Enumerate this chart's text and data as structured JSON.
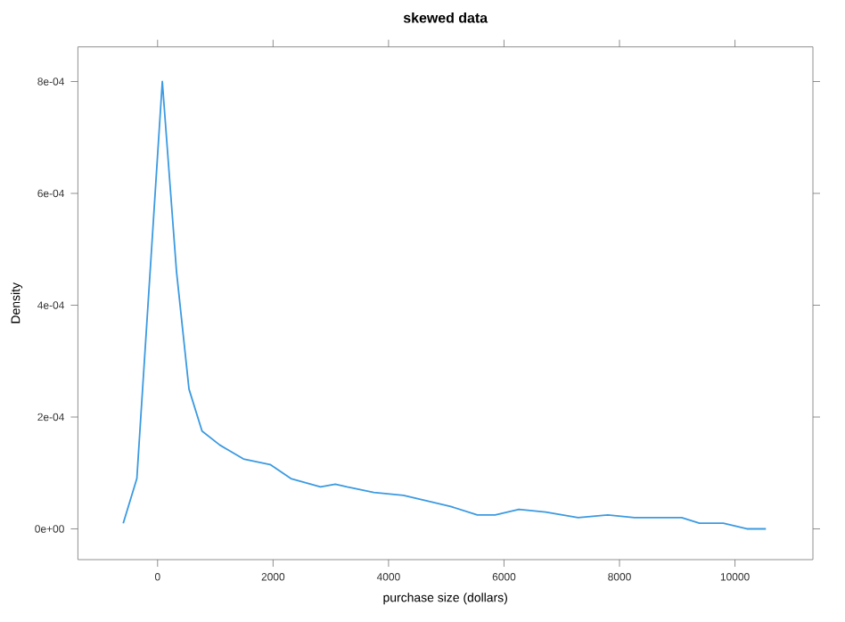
{
  "chart_data": {
    "type": "line",
    "title": "skewed data",
    "xlabel": "purchase size (dollars)",
    "ylabel": "Density",
    "x": [
      -595,
      -359,
      82,
      328,
      544,
      770,
      1077,
      1488,
      1950,
      2309,
      2822,
      3078,
      3283,
      3745,
      4258,
      4668,
      5077,
      5539,
      5847,
      6258,
      6720,
      7284,
      7797,
      8259,
      9077,
      9385,
      9797,
      10206,
      10536
    ],
    "series": [
      {
        "color": "#3b9ae1",
        "values": [
          1e-05,
          9e-05,
          0.0008,
          0.00046,
          0.00025,
          0.000175,
          0.00015,
          0.000125,
          0.000115,
          9e-05,
          7.5e-05,
          8e-05,
          7.5e-05,
          6.5e-05,
          6e-05,
          5e-05,
          4e-05,
          2.5e-05,
          2.5e-05,
          3.5e-05,
          3e-05,
          2e-05,
          2.5e-05,
          2e-05,
          2e-05,
          1e-05,
          1e-05,
          0.0,
          0.0
        ]
      }
    ],
    "xlim": [
      -1380,
      11350
    ],
    "ylim": [
      -5.5e-05,
      0.000862
    ],
    "xticks": [
      0,
      2000,
      4000,
      6000,
      8000,
      10000
    ],
    "yticks": [
      {
        "value": 0,
        "label": "0e+00"
      },
      {
        "value": 0.0002,
        "label": "2e-04"
      },
      {
        "value": 0.0004,
        "label": "4e-04"
      },
      {
        "value": 0.0006,
        "label": "6e-04"
      },
      {
        "value": 0.0008,
        "label": "8e-04"
      }
    ],
    "marker": "none",
    "line_style": "solid"
  }
}
